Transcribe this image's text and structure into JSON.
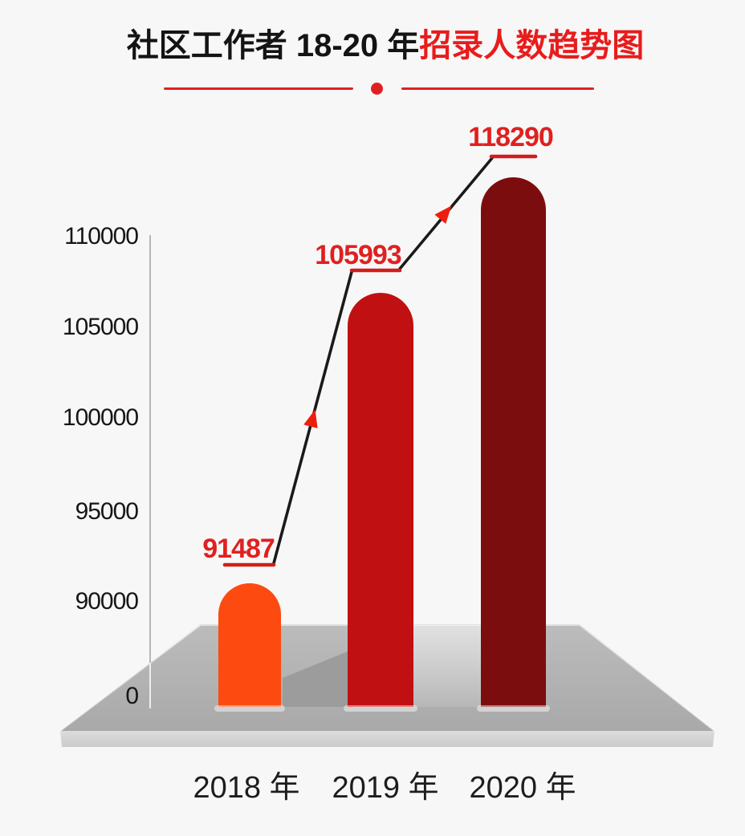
{
  "background": "#f8f7f7",
  "title": {
    "text_black": "社区工作者 18-20 年",
    "text_red": "招录人数趋势图",
    "black_color": "#141414",
    "red_color": "#e81c1c"
  },
  "divider": {
    "accent_color": "#e02020",
    "dot_icon": "red-dot"
  },
  "chart_data": {
    "type": "bar",
    "title": "社区工作者 18-20 年招录人数趋势图",
    "categories": [
      "2018 年",
      "2019 年",
      "2020 年"
    ],
    "values": [
      91487,
      105993,
      118290
    ],
    "value_labels": [
      "91487",
      "105993",
      "118290"
    ],
    "bar_colors": [
      "#fc4a11",
      "#c11011",
      "#7c0d0e"
    ],
    "value_label_color": "#e02020",
    "underline_color": "#d21d1d",
    "trend_line_color": "#1a1a1a",
    "trend_arrow_color": "#ee1d0e",
    "y_axis": {
      "ticks": [
        "110000",
        "105000",
        "100000",
        "95000",
        "90000",
        "0"
      ],
      "tick_values": [
        110000,
        105000,
        100000,
        95000,
        90000,
        0
      ],
      "broken_axis": true,
      "axis_line_color": "#a6a6a6"
    },
    "xlabel": "",
    "ylabel": "",
    "ylim": [
      0,
      120000
    ],
    "grid": false,
    "legend": "none",
    "platform": {
      "top_color_light": "#bcbcbc",
      "top_color_dark": "#a9a9a9",
      "front_color_light": "#dcdcdc",
      "front_color_dark": "#cbcbcb",
      "shadow_color": "#9c9c9c"
    }
  }
}
